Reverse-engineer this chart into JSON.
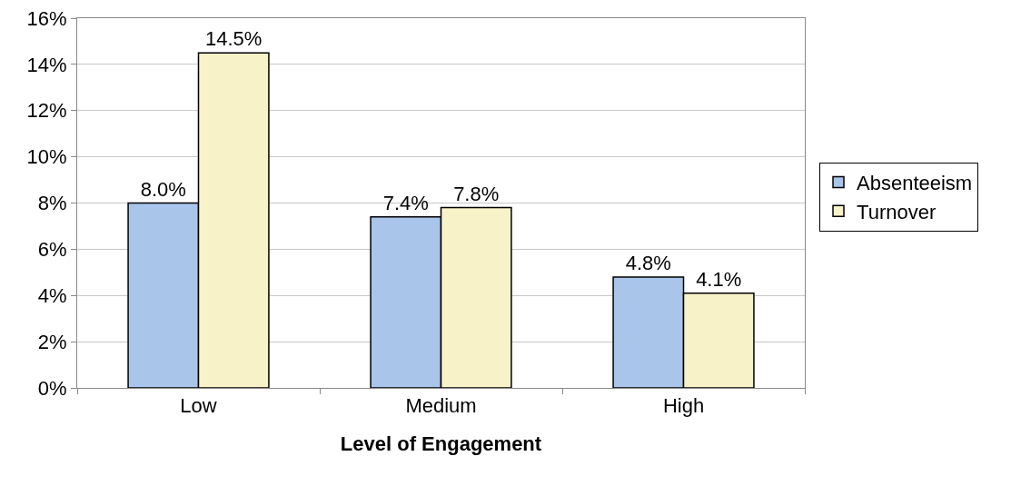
{
  "chart_data": {
    "type": "bar",
    "xlabel": "Level of Engagement",
    "categories": [
      "Low",
      "Medium",
      "High"
    ],
    "series": [
      {
        "name": "Absenteeism",
        "color": "#a9c5ea",
        "values": [
          8.0,
          7.4,
          4.8
        ],
        "value_labels": [
          "8.0%",
          "7.4%",
          "4.8%"
        ]
      },
      {
        "name": "Turnover",
        "color": "#f8f2c8",
        "values": [
          14.5,
          7.8,
          4.1
        ],
        "value_labels": [
          "14.5%",
          "7.8%",
          "4.1%"
        ]
      }
    ],
    "ylim": [
      0,
      16
    ],
    "yticks": [
      {
        "value": 0,
        "label": "0%"
      },
      {
        "value": 2,
        "label": "2%"
      },
      {
        "value": 4,
        "label": "4%"
      },
      {
        "value": 6,
        "label": "6%"
      },
      {
        "value": 8,
        "label": "8%"
      },
      {
        "value": 10,
        "label": "10%"
      },
      {
        "value": 12,
        "label": "12%"
      },
      {
        "value": 14,
        "label": "14%"
      },
      {
        "value": 16,
        "label": "16%"
      }
    ],
    "grid": "y",
    "legend": "right"
  }
}
